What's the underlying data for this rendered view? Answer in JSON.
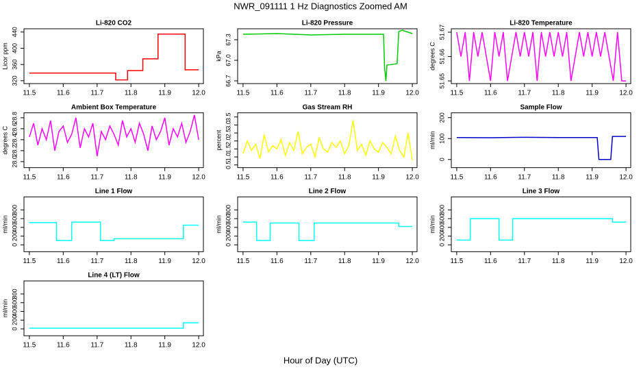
{
  "title": "NWR_091111  1 Hz Diagnostics Zoomed AM",
  "xlabel": "Hour of Day (UTC)",
  "chart_data": [
    {
      "type": "line",
      "title": "Li-820 CO2",
      "ylabel": "Licor ppm",
      "xlim": [
        11.484,
        12.014
      ],
      "xticks": [
        11.5,
        11.6,
        11.7,
        11.8,
        11.9,
        {
          "value": 12,
          "label": "12.0"
        }
      ],
      "ylim": [
        313,
        448
      ],
      "yticks": [
        320,
        360,
        400,
        440
      ],
      "series": [
        {
          "color": "#ff0000",
          "x": [
            11.5,
            11.755,
            11.755,
            11.79,
            11.79,
            11.835,
            11.835,
            11.88,
            11.88,
            11.96,
            11.96,
            12.0
          ],
          "values": [
            339,
            339,
            322,
            322,
            345,
            345,
            374,
            374,
            435,
            435,
            347,
            347
          ]
        }
      ]
    },
    {
      "type": "line",
      "title": "Li-820 Pressure",
      "ylabel": "kPa",
      "xlim": [
        11.484,
        12.014
      ],
      "xticks": [
        11.5,
        11.6,
        11.7,
        11.8,
        11.9,
        {
          "value": 12,
          "label": "12.0"
        }
      ],
      "ylim": [
        66.66,
        67.46
      ],
      "yticks": [
        66.7,
        {
          "value": 67,
          "label": "67.0"
        },
        67.3
      ],
      "series": [
        {
          "color": "#00cc00",
          "x": [
            11.5,
            11.6,
            11.7,
            11.8,
            11.915,
            11.918,
            11.922,
            11.925,
            11.955,
            11.96,
            11.97,
            12.0
          ],
          "values": [
            67.38,
            67.39,
            67.37,
            67.38,
            67.38,
            66.9,
            66.7,
            66.93,
            66.95,
            67.42,
            67.44,
            67.39
          ]
        }
      ]
    },
    {
      "type": "line",
      "title": "Li-820 Temperature",
      "ylabel": "degrees C",
      "xlim": [
        11.484,
        12.014
      ],
      "xticks": [
        11.5,
        11.6,
        11.7,
        11.8,
        11.9,
        {
          "value": 12,
          "label": "12.0"
        }
      ],
      "ylim": [
        51.6489,
        51.6714
      ],
      "yticks": [
        51.65,
        51.66,
        51.67
      ],
      "series": [
        {
          "color": "#ff00ff",
          "x": [
            11.5,
            11.5125,
            11.525,
            11.5375,
            11.55,
            11.5625,
            11.575,
            11.5875,
            11.6,
            11.6125,
            11.625,
            11.6375,
            11.65,
            11.6625,
            11.675,
            11.6875,
            11.7,
            11.7125,
            11.725,
            11.7375,
            11.75,
            11.7625,
            11.775,
            11.7875,
            11.8,
            11.8125,
            11.825,
            11.8375,
            11.85,
            11.8625,
            11.875,
            11.8875,
            11.9,
            11.9125,
            11.925,
            11.9375,
            11.95,
            11.9625,
            11.975,
            11.9875,
            12
          ],
          "values": [
            51.67,
            51.66,
            51.67,
            51.65,
            51.67,
            51.66,
            51.67,
            51.66,
            51.65,
            51.67,
            51.66,
            51.67,
            51.65,
            51.66,
            51.67,
            51.66,
            51.67,
            51.66,
            51.67,
            51.65,
            51.67,
            51.66,
            51.67,
            51.66,
            51.67,
            51.66,
            51.67,
            51.65,
            51.66,
            51.67,
            51.66,
            51.67,
            51.66,
            51.67,
            51.66,
            51.67,
            51.66,
            51.65,
            51.67,
            51.65,
            51.65
          ]
        }
      ]
    },
    {
      "type": "line",
      "title": "Ambient Box Temperature",
      "ylabel": "degrees C",
      "xlim": [
        11.484,
        12.014
      ],
      "xticks": [
        11.5,
        11.6,
        11.7,
        11.8,
        11.9,
        {
          "value": 12,
          "label": "12.0"
        }
      ],
      "ylim": [
        27.89,
        28.89
      ],
      "yticks": [
        {
          "value": 28,
          "label": "28.0"
        },
        28.2,
        28.4,
        28.6,
        28.8
      ],
      "series": [
        {
          "color": "#ff00ff",
          "x": [
            11.5,
            11.5125,
            11.525,
            11.5375,
            11.55,
            11.5625,
            11.575,
            11.5875,
            11.6,
            11.6125,
            11.625,
            11.6375,
            11.65,
            11.6625,
            11.675,
            11.6875,
            11.7,
            11.7125,
            11.725,
            11.7375,
            11.75,
            11.7625,
            11.775,
            11.7875,
            11.8,
            11.8125,
            11.825,
            11.8375,
            11.85,
            11.8625,
            11.875,
            11.8875,
            11.9,
            11.9125,
            11.925,
            11.9375,
            11.95,
            11.9625,
            11.975,
            11.9875,
            12
          ],
          "values": [
            28.45,
            28.7,
            28.3,
            28.6,
            28.4,
            28.75,
            28.2,
            28.55,
            28.65,
            28.35,
            28.5,
            28.8,
            28.25,
            28.6,
            28.45,
            28.7,
            28.1,
            28.55,
            28.4,
            28.65,
            28.5,
            28.3,
            28.75,
            28.45,
            28.6,
            28.35,
            28.7,
            28.5,
            28.2,
            28.65,
            28.4,
            28.55,
            28.8,
            28.3,
            28.6,
            28.45,
            28.7,
            28.35,
            28.55,
            28.85,
            28.4
          ]
        }
      ]
    },
    {
      "type": "line",
      "title": "Gas Stream RH",
      "ylabel": "percent",
      "xlim": [
        11.484,
        12.014
      ],
      "xticks": [
        11.5,
        11.6,
        11.7,
        11.8,
        11.9,
        {
          "value": 12,
          "label": "12.0"
        }
      ],
      "ylim": [
        0.33,
        3.76
      ],
      "yticks": [
        0.5,
        {
          "value": 1,
          "label": "1.0"
        },
        1.5,
        {
          "value": 2,
          "label": "2.0"
        },
        2.5,
        {
          "value": 3,
          "label": "3.0"
        },
        3.5
      ],
      "series": [
        {
          "color": "#ffff00",
          "x": [
            11.5,
            11.5125,
            11.525,
            11.5375,
            11.55,
            11.5625,
            11.575,
            11.5875,
            11.6,
            11.6125,
            11.625,
            11.6375,
            11.65,
            11.6625,
            11.675,
            11.6875,
            11.7,
            11.7125,
            11.725,
            11.7375,
            11.75,
            11.7625,
            11.775,
            11.7875,
            11.8,
            11.8125,
            11.825,
            11.8375,
            11.85,
            11.8625,
            11.875,
            11.8875,
            11.9,
            11.9125,
            11.925,
            11.9375,
            11.95,
            11.9625,
            11.975,
            11.9875,
            12
          ],
          "values": [
            1.2,
            2.0,
            1.4,
            1.8,
            0.9,
            2.4,
            1.3,
            1.7,
            1.5,
            2.1,
            1.1,
            1.9,
            1.4,
            2.6,
            1.2,
            1.6,
            1.8,
            1.0,
            2.2,
            1.5,
            1.3,
            1.9,
            1.6,
            2.0,
            1.2,
            1.7,
            3.3,
            1.4,
            1.8,
            1.1,
            2.0,
            1.5,
            1.3,
            1.9,
            1.6,
            1.2,
            2.3,
            1.4,
            1.0,
            2.5,
            0.8
          ]
        }
      ]
    },
    {
      "type": "line",
      "title": "Sample Flow",
      "ylabel": "ml/min",
      "xlim": [
        11.484,
        12.014
      ],
      "xticks": [
        11.5,
        11.6,
        11.7,
        11.8,
        11.9,
        {
          "value": 12,
          "label": "12.0"
        }
      ],
      "ylim": [
        -39,
        223
      ],
      "yticks": [
        0,
        100,
        200
      ],
      "series": [
        {
          "color": "#0000cc",
          "x": [
            11.5,
            11.6,
            11.7,
            11.8,
            11.915,
            11.92,
            11.955,
            11.96,
            12.0
          ],
          "values": [
            105,
            104,
            106,
            105,
            105,
            0,
            0,
            110,
            110
          ]
        }
      ]
    },
    {
      "type": "line",
      "title": "Line 1 Flow",
      "ylabel": "ml/min",
      "xlim": [
        11.484,
        12.014
      ],
      "xticks": [
        11.5,
        11.6,
        11.7,
        11.8,
        11.9,
        {
          "value": 12,
          "label": "12.0"
        }
      ],
      "ylim": [
        -157,
        1098
      ],
      "yticks": [
        0,
        200,
        400,
        600,
        800
      ],
      "series": [
        {
          "color": "#00ffff",
          "x": [
            11.5,
            11.58,
            11.58,
            11.625,
            11.625,
            11.71,
            11.71,
            11.75,
            11.75,
            11.955,
            11.955,
            12.0
          ],
          "values": [
            510,
            510,
            100,
            100,
            520,
            520,
            100,
            100,
            140,
            140,
            450,
            450
          ]
        }
      ]
    },
    {
      "type": "line",
      "title": "Line 2 Flow",
      "ylabel": "ml/min",
      "xlim": [
        11.484,
        12.014
      ],
      "xticks": [
        11.5,
        11.6,
        11.7,
        11.8,
        11.9,
        {
          "value": 12,
          "label": "12.0"
        }
      ],
      "ylim": [
        -157,
        1098
      ],
      "yticks": [
        0,
        200,
        400,
        600,
        800
      ],
      "series": [
        {
          "color": "#00ffff",
          "x": [
            11.5,
            11.54,
            11.54,
            11.58,
            11.58,
            11.665,
            11.665,
            11.71,
            11.71,
            11.96,
            11.96,
            12.0
          ],
          "values": [
            520,
            520,
            100,
            100,
            500,
            500,
            100,
            100,
            500,
            500,
            420,
            420
          ]
        }
      ]
    },
    {
      "type": "line",
      "title": "Line 3 Flow",
      "ylabel": "ml/min",
      "xlim": [
        11.484,
        12.014
      ],
      "xticks": [
        11.5,
        11.6,
        11.7,
        11.8,
        11.9,
        {
          "value": 12,
          "label": "12.0"
        }
      ],
      "ylim": [
        -157,
        1098
      ],
      "yticks": [
        0,
        200,
        400,
        600,
        800
      ],
      "series": [
        {
          "color": "#00ffff",
          "x": [
            11.5,
            11.54,
            11.54,
            11.625,
            11.625,
            11.665,
            11.665,
            11.96,
            11.96,
            12.0
          ],
          "values": [
            110,
            110,
            600,
            600,
            110,
            110,
            600,
            600,
            520,
            520
          ]
        }
      ]
    },
    {
      "type": "line",
      "title": "Line 4 (LT) Flow",
      "ylabel": "ml/min",
      "xlim": [
        11.484,
        12.014
      ],
      "xticks": [
        11.5,
        11.6,
        11.7,
        11.8,
        11.9,
        {
          "value": 12,
          "label": "12.0"
        }
      ],
      "ylim": [
        -157,
        1098
      ],
      "yticks": [
        0,
        200,
        400,
        600,
        800
      ],
      "series": [
        {
          "color": "#00ffff",
          "x": [
            11.5,
            11.955,
            11.955,
            12.0
          ],
          "values": [
            15,
            15,
            140,
            140
          ]
        }
      ]
    }
  ]
}
